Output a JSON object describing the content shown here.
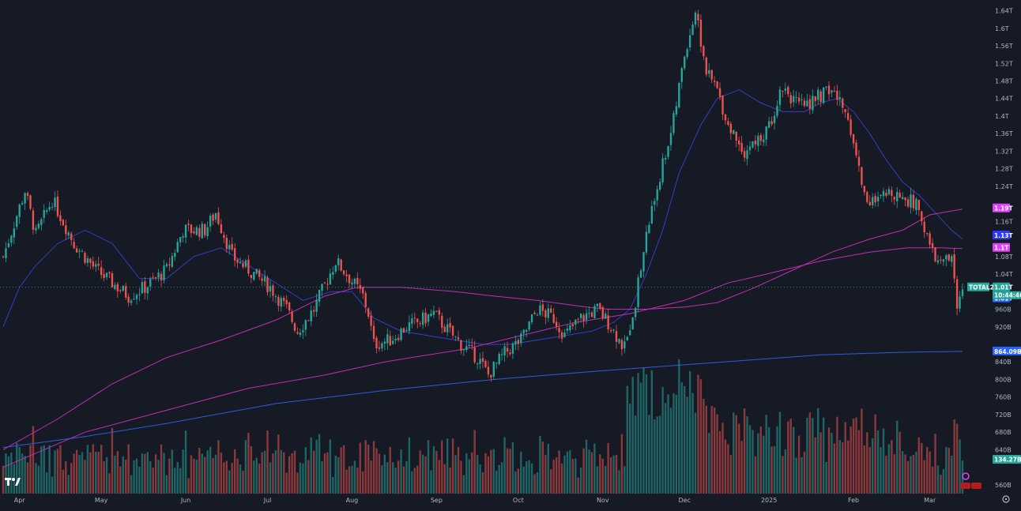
{
  "chart_data": {
    "type": "candlestick",
    "symbol": "TOTAL2",
    "last_price": "1.01T",
    "countdown": "10:44:46",
    "volume_label": "134.27B",
    "y_axis": {
      "unit": "USD",
      "ticks": [
        {
          "label": "1.64T",
          "value": 1640
        },
        {
          "label": "1.6T",
          "value": 1600
        },
        {
          "label": "1.56T",
          "value": 1560
        },
        {
          "label": "1.52T",
          "value": 1520
        },
        {
          "label": "1.48T",
          "value": 1480
        },
        {
          "label": "1.44T",
          "value": 1440
        },
        {
          "label": "1.4T",
          "value": 1400
        },
        {
          "label": "1.36T",
          "value": 1360
        },
        {
          "label": "1.32T",
          "value": 1320
        },
        {
          "label": "1.28T",
          "value": 1280
        },
        {
          "label": "1.24T",
          "value": 1240
        },
        {
          "label": "1.16T",
          "value": 1160
        },
        {
          "label": "1.08T",
          "value": 1080
        },
        {
          "label": "1.04T",
          "value": 1040
        },
        {
          "label": "960B",
          "value": 960
        },
        {
          "label": "920B",
          "value": 920
        },
        {
          "label": "840B",
          "value": 840
        },
        {
          "label": "800B",
          "value": 800
        },
        {
          "label": "760B",
          "value": 760
        },
        {
          "label": "720B",
          "value": 720
        },
        {
          "label": "680B",
          "value": 680
        },
        {
          "label": "640B",
          "value": 640
        },
        {
          "label": "560B",
          "value": 560
        }
      ],
      "scale_min": 540,
      "scale_max": 1650
    },
    "x_axis": {
      "labels": [
        {
          "label": "Apr",
          "day": 6
        },
        {
          "label": "May",
          "day": 36
        },
        {
          "label": "Jun",
          "day": 67
        },
        {
          "label": "Jul",
          "day": 97
        },
        {
          "label": "Aug",
          "day": 128
        },
        {
          "label": "Sep",
          "day": 159
        },
        {
          "label": "Oct",
          "day": 189
        },
        {
          "label": "Nov",
          "day": 220
        },
        {
          "label": "Dec",
          "day": 250
        },
        {
          "label": "2025",
          "day": 281
        },
        {
          "label": "Feb",
          "day": 312
        },
        {
          "label": "Mar",
          "day": 340
        }
      ],
      "total_days": 352
    },
    "price_tags": [
      {
        "label": "1.19T",
        "value": 1190,
        "color": "#e040fb"
      },
      {
        "label": "1.13T",
        "value": 1128,
        "color": "#2f3aff"
      },
      {
        "label": "1.1T",
        "value": 1100,
        "color": "#e040fb"
      },
      {
        "label": "1.01T",
        "value": 1010,
        "color": "#26a69a"
      },
      {
        "label": "1.01T",
        "value": 985,
        "color": "#2962ff"
      },
      {
        "label": "864.09B",
        "value": 864,
        "color": "#2962ff"
      }
    ],
    "price_path": [
      [
        0,
        1080
      ],
      [
        8,
        1230
      ],
      [
        12,
        1130
      ],
      [
        18,
        1210
      ],
      [
        26,
        1110
      ],
      [
        34,
        1050
      ],
      [
        40,
        1020
      ],
      [
        46,
        990
      ],
      [
        52,
        1010
      ],
      [
        60,
        1050
      ],
      [
        66,
        1140
      ],
      [
        74,
        1140
      ],
      [
        78,
        1180
      ],
      [
        84,
        1080
      ],
      [
        92,
        1040
      ],
      [
        98,
        1010
      ],
      [
        104,
        960
      ],
      [
        108,
        910
      ],
      [
        114,
        960
      ],
      [
        122,
        1070
      ],
      [
        126,
        1040
      ],
      [
        132,
        990
      ],
      [
        134,
        950
      ],
      [
        136,
        880
      ],
      [
        142,
        890
      ],
      [
        148,
        920
      ],
      [
        152,
        930
      ],
      [
        158,
        950
      ],
      [
        162,
        920
      ],
      [
        168,
        880
      ],
      [
        174,
        850
      ],
      [
        178,
        810
      ],
      [
        184,
        860
      ],
      [
        190,
        890
      ],
      [
        196,
        960
      ],
      [
        202,
        940
      ],
      [
        206,
        900
      ],
      [
        212,
        940
      ],
      [
        218,
        960
      ],
      [
        222,
        930
      ],
      [
        228,
        870
      ],
      [
        232,
        980
      ],
      [
        236,
        1130
      ],
      [
        240,
        1240
      ],
      [
        246,
        1390
      ],
      [
        250,
        1540
      ],
      [
        254,
        1640
      ],
      [
        258,
        1500
      ],
      [
        262,
        1460
      ],
      [
        266,
        1380
      ],
      [
        272,
        1320
      ],
      [
        280,
        1360
      ],
      [
        286,
        1470
      ],
      [
        292,
        1420
      ],
      [
        298,
        1440
      ],
      [
        304,
        1460
      ],
      [
        310,
        1400
      ],
      [
        316,
        1220
      ],
      [
        320,
        1200
      ],
      [
        326,
        1230
      ],
      [
        332,
        1210
      ],
      [
        336,
        1190
      ],
      [
        340,
        1100
      ],
      [
        344,
        1060
      ],
      [
        348,
        1080
      ],
      [
        350,
        960
      ],
      [
        352,
        1010
      ]
    ],
    "series": [
      {
        "name": "",
        "color": "#3a40d0",
        "width": 0.9,
        "points": [
          [
            0,
            920
          ],
          [
            6,
            1010
          ],
          [
            12,
            1060
          ],
          [
            20,
            1110
          ],
          [
            30,
            1140
          ],
          [
            40,
            1110
          ],
          [
            50,
            1030
          ],
          [
            60,
            1030
          ],
          [
            70,
            1080
          ],
          [
            80,
            1100
          ],
          [
            90,
            1060
          ],
          [
            100,
            1020
          ],
          [
            110,
            980
          ],
          [
            120,
            1000
          ],
          [
            128,
            1000
          ],
          [
            136,
            940
          ],
          [
            146,
            910
          ],
          [
            156,
            900
          ],
          [
            166,
            890
          ],
          [
            176,
            880
          ],
          [
            186,
            880
          ],
          [
            196,
            890
          ],
          [
            206,
            900
          ],
          [
            216,
            910
          ],
          [
            224,
            930
          ],
          [
            230,
            960
          ],
          [
            236,
            1040
          ],
          [
            242,
            1140
          ],
          [
            248,
            1270
          ],
          [
            256,
            1380
          ],
          [
            262,
            1440
          ],
          [
            270,
            1460
          ],
          [
            278,
            1430
          ],
          [
            286,
            1410
          ],
          [
            294,
            1410
          ],
          [
            300,
            1430
          ],
          [
            306,
            1440
          ],
          [
            312,
            1410
          ],
          [
            318,
            1360
          ],
          [
            324,
            1300
          ],
          [
            330,
            1250
          ],
          [
            336,
            1220
          ],
          [
            342,
            1180
          ],
          [
            348,
            1140
          ],
          [
            352,
            1120
          ]
        ]
      },
      {
        "name": "",
        "color": "#c02fb0",
        "width": 1.0,
        "points": [
          [
            0,
            640
          ],
          [
            20,
            710
          ],
          [
            40,
            790
          ],
          [
            60,
            850
          ],
          [
            80,
            890
          ],
          [
            100,
            935
          ],
          [
            118,
            990
          ],
          [
            130,
            1010
          ],
          [
            146,
            1010
          ],
          [
            166,
            1000
          ],
          [
            180,
            990
          ],
          [
            196,
            980
          ],
          [
            214,
            965
          ],
          [
            222,
            960
          ],
          [
            236,
            960
          ],
          [
            250,
            965
          ],
          [
            262,
            975
          ],
          [
            276,
            1010
          ],
          [
            290,
            1050
          ],
          [
            304,
            1090
          ],
          [
            318,
            1120
          ],
          [
            330,
            1140
          ],
          [
            340,
            1175
          ],
          [
            352,
            1188
          ]
        ]
      },
      {
        "name": "",
        "color": "#c02fb0",
        "width": 1.0,
        "points": [
          [
            0,
            600
          ],
          [
            30,
            680
          ],
          [
            60,
            730
          ],
          [
            90,
            780
          ],
          [
            118,
            810
          ],
          [
            140,
            840
          ],
          [
            170,
            870
          ],
          [
            190,
            900
          ],
          [
            210,
            930
          ],
          [
            230,
            950
          ],
          [
            250,
            980
          ],
          [
            266,
            1020
          ],
          [
            280,
            1040
          ],
          [
            300,
            1070
          ],
          [
            318,
            1090
          ],
          [
            332,
            1100
          ],
          [
            344,
            1100
          ],
          [
            352,
            1098
          ]
        ]
      },
      {
        "name": "",
        "color": "#2f5cdc",
        "width": 1.0,
        "points": [
          [
            0,
            645
          ],
          [
            30,
            670
          ],
          [
            60,
            700
          ],
          [
            100,
            745
          ],
          [
            140,
            775
          ],
          [
            180,
            800
          ],
          [
            220,
            820
          ],
          [
            260,
            838
          ],
          [
            300,
            856
          ],
          [
            330,
            862
          ],
          [
            352,
            864
          ]
        ]
      }
    ]
  }
}
